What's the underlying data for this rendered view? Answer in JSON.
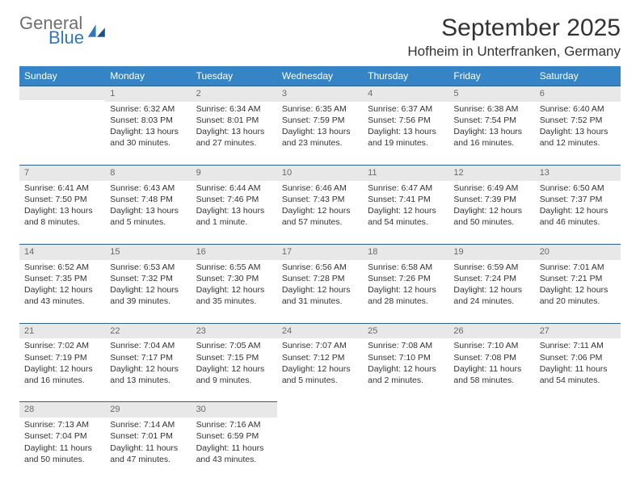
{
  "logo": {
    "general": "General",
    "blue": "Blue"
  },
  "title": "September 2025",
  "location": "Hofheim in Unterfranken, Germany",
  "header_bg": "#3585c6",
  "daynum_bg": "#e8e8e8",
  "border_color": "#2f5f8c",
  "columns": [
    "Sunday",
    "Monday",
    "Tuesday",
    "Wednesday",
    "Thursday",
    "Friday",
    "Saturday"
  ],
  "weeks": [
    [
      {
        "n": "",
        "sr": "",
        "ss": "",
        "dl": ""
      },
      {
        "n": "1",
        "sr": "6:32 AM",
        "ss": "8:03 PM",
        "dl": "13 hours and 30 minutes."
      },
      {
        "n": "2",
        "sr": "6:34 AM",
        "ss": "8:01 PM",
        "dl": "13 hours and 27 minutes."
      },
      {
        "n": "3",
        "sr": "6:35 AM",
        "ss": "7:59 PM",
        "dl": "13 hours and 23 minutes."
      },
      {
        "n": "4",
        "sr": "6:37 AM",
        "ss": "7:56 PM",
        "dl": "13 hours and 19 minutes."
      },
      {
        "n": "5",
        "sr": "6:38 AM",
        "ss": "7:54 PM",
        "dl": "13 hours and 16 minutes."
      },
      {
        "n": "6",
        "sr": "6:40 AM",
        "ss": "7:52 PM",
        "dl": "13 hours and 12 minutes."
      }
    ],
    [
      {
        "n": "7",
        "sr": "6:41 AM",
        "ss": "7:50 PM",
        "dl": "13 hours and 8 minutes."
      },
      {
        "n": "8",
        "sr": "6:43 AM",
        "ss": "7:48 PM",
        "dl": "13 hours and 5 minutes."
      },
      {
        "n": "9",
        "sr": "6:44 AM",
        "ss": "7:46 PM",
        "dl": "13 hours and 1 minute."
      },
      {
        "n": "10",
        "sr": "6:46 AM",
        "ss": "7:43 PM",
        "dl": "12 hours and 57 minutes."
      },
      {
        "n": "11",
        "sr": "6:47 AM",
        "ss": "7:41 PM",
        "dl": "12 hours and 54 minutes."
      },
      {
        "n": "12",
        "sr": "6:49 AM",
        "ss": "7:39 PM",
        "dl": "12 hours and 50 minutes."
      },
      {
        "n": "13",
        "sr": "6:50 AM",
        "ss": "7:37 PM",
        "dl": "12 hours and 46 minutes."
      }
    ],
    [
      {
        "n": "14",
        "sr": "6:52 AM",
        "ss": "7:35 PM",
        "dl": "12 hours and 43 minutes."
      },
      {
        "n": "15",
        "sr": "6:53 AM",
        "ss": "7:32 PM",
        "dl": "12 hours and 39 minutes."
      },
      {
        "n": "16",
        "sr": "6:55 AM",
        "ss": "7:30 PM",
        "dl": "12 hours and 35 minutes."
      },
      {
        "n": "17",
        "sr": "6:56 AM",
        "ss": "7:28 PM",
        "dl": "12 hours and 31 minutes."
      },
      {
        "n": "18",
        "sr": "6:58 AM",
        "ss": "7:26 PM",
        "dl": "12 hours and 28 minutes."
      },
      {
        "n": "19",
        "sr": "6:59 AM",
        "ss": "7:24 PM",
        "dl": "12 hours and 24 minutes."
      },
      {
        "n": "20",
        "sr": "7:01 AM",
        "ss": "7:21 PM",
        "dl": "12 hours and 20 minutes."
      }
    ],
    [
      {
        "n": "21",
        "sr": "7:02 AM",
        "ss": "7:19 PM",
        "dl": "12 hours and 16 minutes."
      },
      {
        "n": "22",
        "sr": "7:04 AM",
        "ss": "7:17 PM",
        "dl": "12 hours and 13 minutes."
      },
      {
        "n": "23",
        "sr": "7:05 AM",
        "ss": "7:15 PM",
        "dl": "12 hours and 9 minutes."
      },
      {
        "n": "24",
        "sr": "7:07 AM",
        "ss": "7:12 PM",
        "dl": "12 hours and 5 minutes."
      },
      {
        "n": "25",
        "sr": "7:08 AM",
        "ss": "7:10 PM",
        "dl": "12 hours and 2 minutes."
      },
      {
        "n": "26",
        "sr": "7:10 AM",
        "ss": "7:08 PM",
        "dl": "11 hours and 58 minutes."
      },
      {
        "n": "27",
        "sr": "7:11 AM",
        "ss": "7:06 PM",
        "dl": "11 hours and 54 minutes."
      }
    ],
    [
      {
        "n": "28",
        "sr": "7:13 AM",
        "ss": "7:04 PM",
        "dl": "11 hours and 50 minutes."
      },
      {
        "n": "29",
        "sr": "7:14 AM",
        "ss": "7:01 PM",
        "dl": "11 hours and 47 minutes."
      },
      {
        "n": "30",
        "sr": "7:16 AM",
        "ss": "6:59 PM",
        "dl": "11 hours and 43 minutes."
      },
      {
        "n": "",
        "sr": "",
        "ss": "",
        "dl": ""
      },
      {
        "n": "",
        "sr": "",
        "ss": "",
        "dl": ""
      },
      {
        "n": "",
        "sr": "",
        "ss": "",
        "dl": ""
      },
      {
        "n": "",
        "sr": "",
        "ss": "",
        "dl": ""
      }
    ]
  ],
  "labels": {
    "sunrise": "Sunrise: ",
    "sunset": "Sunset: ",
    "daylight": "Daylight: "
  }
}
